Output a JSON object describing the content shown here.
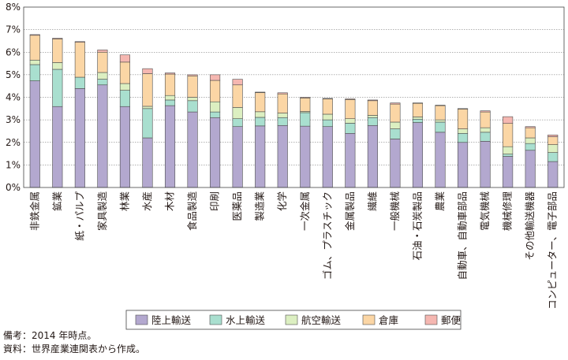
{
  "chart_data": {
    "type": "bar",
    "stacked": true,
    "ylim": [
      0,
      8
    ],
    "yticks": [
      "0%",
      "1%",
      "2%",
      "3%",
      "4%",
      "5%",
      "6%",
      "7%",
      "8%"
    ],
    "grid": true,
    "legend_position": "bottom",
    "categories": [
      "非鉄金属",
      "鉱業",
      "紙・パルプ",
      "家具製造",
      "林業",
      "水産",
      "木材",
      "食品製造",
      "印刷",
      "医薬品",
      "製造業",
      "化学",
      "一次金属",
      "ゴム、プラスチック",
      "金属製品",
      "繊維",
      "一般機械",
      "石油・石炭製品",
      "農業",
      "自動車、自動車部品",
      "電気機械",
      "機械修理",
      "その他輸送機器",
      "コンピューター、電子部品"
    ],
    "series": [
      {
        "name": "陸上輸送",
        "color": "#b3a8cf",
        "values": [
          4.73,
          3.59,
          4.39,
          4.55,
          3.59,
          2.2,
          3.63,
          3.35,
          3.1,
          2.7,
          2.73,
          2.75,
          2.72,
          2.7,
          2.4,
          2.75,
          2.15,
          2.88,
          2.45,
          2.0,
          2.05,
          1.38,
          1.65,
          1.15
        ]
      },
      {
        "name": "水上輸送",
        "color": "#a9dfcf",
        "values": [
          0.72,
          1.65,
          0.5,
          0.25,
          0.72,
          1.3,
          0.25,
          0.5,
          0.25,
          0.35,
          0.38,
          0.35,
          0.6,
          0.3,
          0.45,
          0.35,
          0.45,
          0.15,
          0.45,
          0.4,
          0.4,
          0.1,
          0.3,
          0.4
        ]
      },
      {
        "name": "航空輸送",
        "color": "#dcefc1",
        "values": [
          0.2,
          0.3,
          0.0,
          0.3,
          0.3,
          0.1,
          0.2,
          0.15,
          0.45,
          0.5,
          0.25,
          0.2,
          0.05,
          0.25,
          0.2,
          0.1,
          0.3,
          0.1,
          0.1,
          0.2,
          0.2,
          0.33,
          0.25,
          0.35
        ]
      },
      {
        "name": "倉庫",
        "color": "#fbd6a5",
        "values": [
          1.1,
          1.05,
          1.55,
          0.9,
          0.95,
          1.45,
          0.95,
          0.95,
          0.95,
          1.0,
          0.85,
          0.85,
          0.6,
          0.68,
          0.85,
          0.65,
          0.8,
          0.6,
          0.63,
          0.88,
          0.7,
          1.03,
          0.45,
          0.35
        ]
      },
      {
        "name": "郵便",
        "color": "#f5b7b1",
        "values": [
          0.03,
          0.03,
          0.03,
          0.1,
          0.32,
          0.22,
          0.05,
          0.05,
          0.25,
          0.25,
          0.02,
          0.05,
          0.03,
          0.02,
          0.03,
          0.03,
          0.05,
          0.02,
          0.02,
          0.02,
          0.05,
          0.3,
          0.05,
          0.08
        ]
      }
    ]
  },
  "notes": {
    "line1": "備考：2014 年時点。",
    "line2": "資料：世界産業連関表から作成。"
  }
}
